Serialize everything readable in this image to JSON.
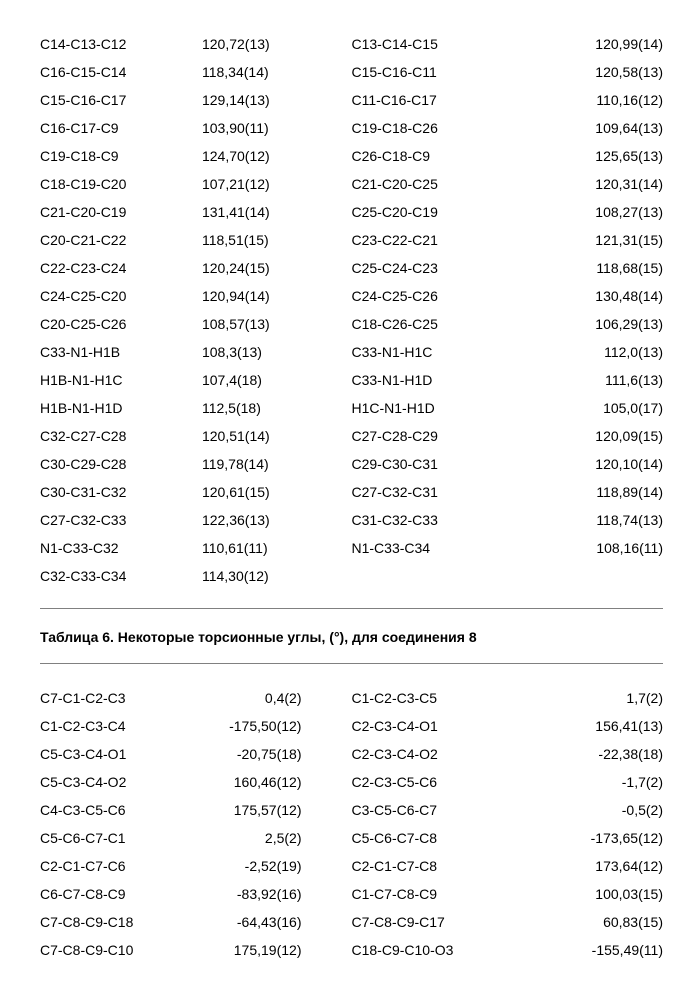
{
  "table1": {
    "rows": [
      [
        "C14-C13-C12",
        "120,72(13)",
        "C13-C14-C15",
        "120,99(14)"
      ],
      [
        "C16-C15-C14",
        "118,34(14)",
        "C15-C16-C11",
        "120,58(13)"
      ],
      [
        "C15-C16-C17",
        "129,14(13)",
        "C11-C16-C17",
        "110,16(12)"
      ],
      [
        "C16-C17-C9",
        "103,90(11)",
        "C19-C18-C26",
        "109,64(13)"
      ],
      [
        "C19-C18-C9",
        "124,70(12)",
        "C26-C18-C9",
        "125,65(13)"
      ],
      [
        "C18-C19-C20",
        "107,21(12)",
        "C21-C20-C25",
        "120,31(14)"
      ],
      [
        "C21-C20-C19",
        "131,41(14)",
        "C25-C20-C19",
        "108,27(13)"
      ],
      [
        "C20-C21-C22",
        "118,51(15)",
        "C23-C22-C21",
        "121,31(15)"
      ],
      [
        "C22-C23-C24",
        "120,24(15)",
        "C25-C24-C23",
        "118,68(15)"
      ],
      [
        "C24-C25-C20",
        "120,94(14)",
        "C24-C25-C26",
        "130,48(14)"
      ],
      [
        "C20-C25-C26",
        "108,57(13)",
        "C18-C26-C25",
        "106,29(13)"
      ],
      [
        "C33-N1-H1B",
        "108,3(13)",
        "C33-N1-H1C",
        "112,0(13)"
      ],
      [
        "H1B-N1-H1C",
        "107,4(18)",
        "C33-N1-H1D",
        "111,6(13)"
      ],
      [
        "H1B-N1-H1D",
        "112,5(18)",
        "H1C-N1-H1D",
        "105,0(17)"
      ],
      [
        "C32-C27-C28",
        "120,51(14)",
        "C27-C28-C29",
        "120,09(15)"
      ],
      [
        "C30-C29-C28",
        "119,78(14)",
        "C29-C30-C31",
        "120,10(14)"
      ],
      [
        "C30-C31-C32",
        "120,61(15)",
        "C27-C32-C31",
        "118,89(14)"
      ],
      [
        "C27-C32-C33",
        "122,36(13)",
        "C31-C32-C33",
        "118,74(13)"
      ],
      [
        "N1-C33-C32",
        "110,61(11)",
        "N1-C33-C34",
        "108,16(11)"
      ],
      [
        "C32-C33-C34",
        "114,30(12)",
        "",
        ""
      ]
    ]
  },
  "table2": {
    "caption": "Таблица 6. Некоторые торсионные углы, (°), для соединения 8",
    "rows": [
      [
        "C7-C1-C2-C3",
        "0,4(2)",
        "C1-C2-C3-C5",
        "1,7(2)"
      ],
      [
        "C1-C2-C3-C4",
        "-175,50(12)",
        "C2-C3-C4-O1",
        "156,41(13)"
      ],
      [
        "C5-C3-C4-O1",
        "-20,75(18)",
        "C2-C3-C4-O2",
        "-22,38(18)"
      ],
      [
        "C5-C3-C4-O2",
        "160,46(12)",
        "C2-C3-C5-C6",
        "-1,7(2)"
      ],
      [
        "C4-C3-C5-C6",
        "175,57(12)",
        "C3-C5-C6-C7",
        "-0,5(2)"
      ],
      [
        "C5-C6-C7-C1",
        "2,5(2)",
        "C5-C6-C7-C8",
        "-173,65(12)"
      ],
      [
        "C2-C1-C7-C6",
        "-2,52(19)",
        "C2-C1-C7-C8",
        "173,64(12)"
      ],
      [
        "C6-C7-C8-C9",
        "-83,92(16)",
        "C1-C7-C8-C9",
        "100,03(15)"
      ],
      [
        "C7-C8-C9-C18",
        "-64,43(16)",
        "C7-C8-C9-C17",
        "60,83(15)"
      ],
      [
        "C7-C8-C9-C10",
        "175,19(12)",
        "C18-C9-C10-O3",
        "-155,49(11)"
      ]
    ]
  }
}
